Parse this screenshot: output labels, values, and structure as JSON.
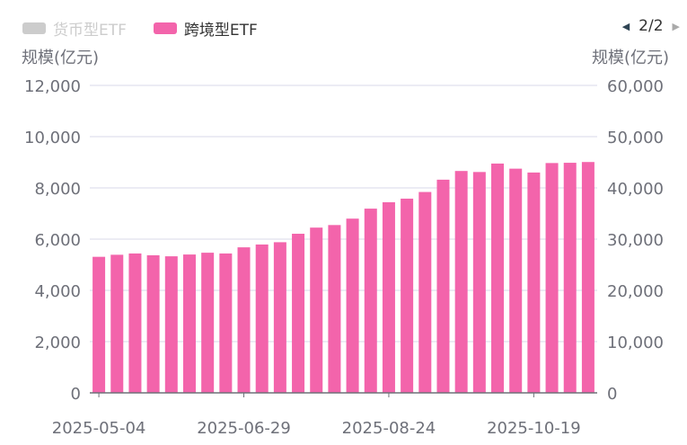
{
  "legend": {
    "pager": "2/2",
    "items": [
      {
        "label": "货币型ETF",
        "color": "#cccccc",
        "active": false
      },
      {
        "label": "跨境型ETF",
        "color": "#f364ab",
        "active": true
      }
    ]
  },
  "chart_data": {
    "type": "bar",
    "y_left_label": "规模(亿元)",
    "y_right_label": "规模(亿元)",
    "ylim_left": [
      0,
      12000
    ],
    "ylim_right": [
      0,
      60000
    ],
    "y_left_ticks": [
      "0",
      "2,000",
      "4,000",
      "6,000",
      "8,000",
      "10,000",
      "12,000"
    ],
    "y_right_ticks": [
      "0",
      "10,000",
      "20,000",
      "30,000",
      "40,000",
      "50,000",
      "60,000"
    ],
    "x_tick_labels": [
      "2025-05-04",
      "2025-06-29",
      "2025-08-24",
      "2025-10-19"
    ],
    "categories": [
      "2025-05-04",
      "2025-05-11",
      "2025-05-18",
      "2025-05-25",
      "2025-06-01",
      "2025-06-08",
      "2025-06-15",
      "2025-06-22",
      "2025-06-29",
      "2025-07-06",
      "2025-07-13",
      "2025-07-20",
      "2025-07-27",
      "2025-08-03",
      "2025-08-10",
      "2025-08-17",
      "2025-08-24",
      "2025-08-31",
      "2025-09-07",
      "2025-09-14",
      "2025-09-21",
      "2025-09-28",
      "2025-10-05",
      "2025-10-12",
      "2025-10-19",
      "2025-10-26",
      "2025-11-02",
      "2025-11-09"
    ],
    "series": [
      {
        "name": "跨境型ETF",
        "axis": "left",
        "color": "#f364ab",
        "values": [
          5310,
          5390,
          5440,
          5370,
          5330,
          5400,
          5470,
          5440,
          5680,
          5790,
          5880,
          6210,
          6450,
          6550,
          6800,
          7190,
          7440,
          7580,
          7840,
          8320,
          8660,
          8620,
          8950,
          8750,
          8600,
          8970,
          8980,
          9010
        ]
      }
    ],
    "grid": true,
    "legend_position": "top-left"
  }
}
